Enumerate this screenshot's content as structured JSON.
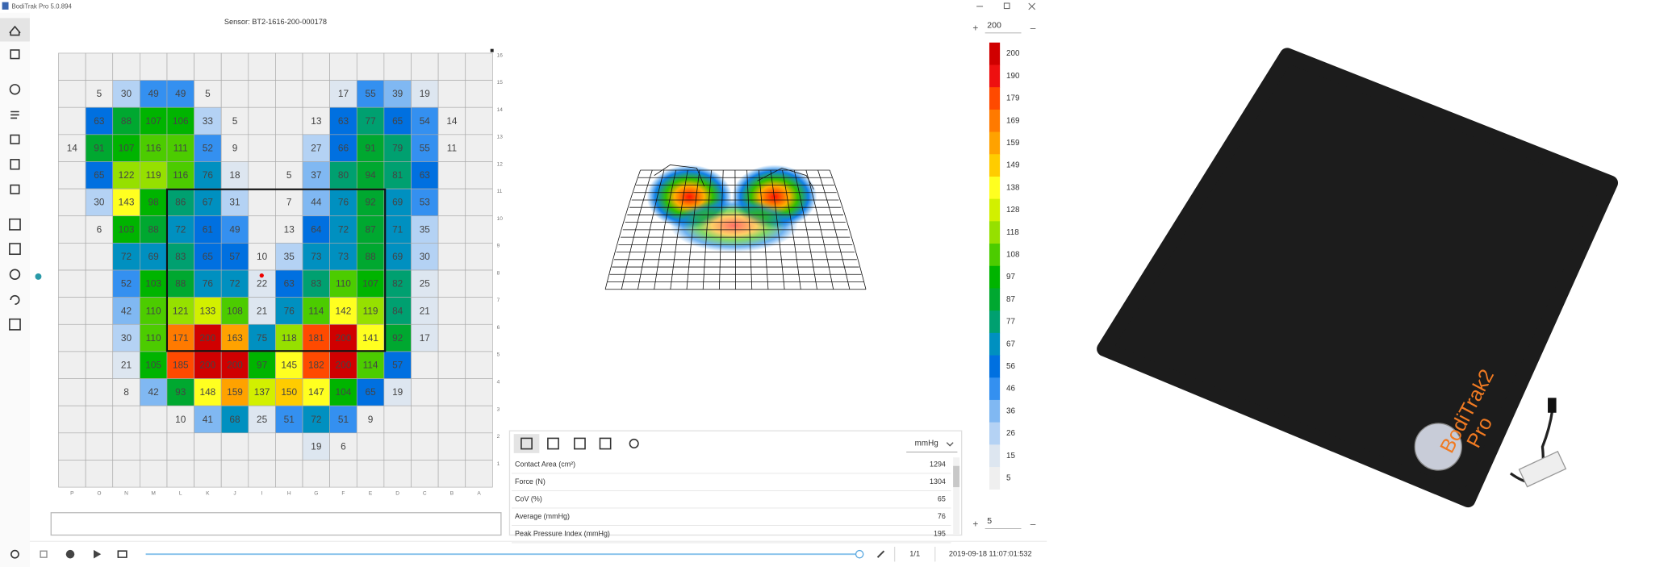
{
  "window": {
    "title": "BodiTrak Pro 5.0.894"
  },
  "sensor": "Sensor: BT2-1616-200-000178",
  "pressure_map": {
    "columns": [
      "P",
      "O",
      "N",
      "M",
      "L",
      "K",
      "J",
      "I",
      "H",
      "G",
      "F",
      "E",
      "D",
      "C",
      "B",
      "A"
    ],
    "rows": [
      16,
      15,
      14,
      13,
      12,
      11,
      10,
      9,
      8,
      7,
      6,
      5,
      4,
      3,
      2,
      1
    ],
    "cells": [
      [
        null,
        null,
        null,
        null,
        null,
        null,
        null,
        null,
        null,
        null,
        null,
        null,
        null,
        null,
        null,
        null
      ],
      [
        null,
        5,
        30,
        49,
        49,
        5,
        null,
        null,
        null,
        null,
        17,
        55,
        39,
        19,
        null,
        null
      ],
      [
        null,
        63,
        88,
        107,
        106,
        33,
        5,
        null,
        null,
        13,
        63,
        77,
        65,
        54,
        14,
        null
      ],
      [
        14,
        91,
        107,
        116,
        111,
        52,
        9,
        null,
        null,
        27,
        66,
        91,
        79,
        55,
        11,
        null
      ],
      [
        null,
        65,
        122,
        119,
        116,
        76,
        18,
        null,
        5,
        37,
        80,
        94,
        81,
        63,
        null,
        null
      ],
      [
        null,
        30,
        143,
        98,
        86,
        67,
        31,
        null,
        7,
        44,
        76,
        92,
        69,
        53,
        null,
        null
      ],
      [
        null,
        6,
        103,
        88,
        72,
        61,
        49,
        null,
        13,
        64,
        72,
        87,
        71,
        35,
        null,
        null
      ],
      [
        null,
        null,
        72,
        69,
        83,
        65,
        57,
        10,
        35,
        73,
        73,
        88,
        69,
        30,
        null,
        null
      ],
      [
        null,
        null,
        52,
        103,
        88,
        76,
        72,
        22,
        63,
        83,
        110,
        107,
        82,
        25,
        null,
        null
      ],
      [
        null,
        null,
        42,
        110,
        121,
        133,
        108,
        21,
        76,
        114,
        142,
        119,
        84,
        21,
        null,
        null
      ],
      [
        null,
        null,
        30,
        110,
        171,
        200,
        163,
        75,
        118,
        181,
        200,
        141,
        92,
        17,
        null,
        null
      ],
      [
        null,
        null,
        21,
        105,
        185,
        200,
        200,
        97,
        145,
        182,
        200,
        114,
        57,
        null,
        null,
        null
      ],
      [
        null,
        null,
        8,
        42,
        93,
        148,
        159,
        137,
        150,
        147,
        104,
        65,
        19,
        null,
        null,
        null
      ],
      [
        null,
        null,
        null,
        null,
        10,
        41,
        68,
        25,
        51,
        72,
        51,
        9,
        null,
        null,
        null,
        null
      ],
      [
        null,
        null,
        null,
        null,
        null,
        null,
        null,
        null,
        null,
        19,
        6,
        null,
        null,
        null,
        null,
        null
      ],
      [
        null,
        null,
        null,
        null,
        null,
        null,
        null,
        null,
        null,
        null,
        null,
        null,
        null,
        null,
        null,
        null
      ]
    ]
  },
  "color_scale": {
    "max": 200,
    "min": 5,
    "labels": [
      200,
      190,
      179,
      169,
      159,
      149,
      138,
      128,
      118,
      108,
      97,
      87,
      77,
      67,
      56,
      46,
      36,
      26,
      15,
      5
    ],
    "colors": [
      "#d00000",
      "#ee1010",
      "#ff4a00",
      "#ff7a00",
      "#ffa200",
      "#ffcc00",
      "#ffff20",
      "#d2f000",
      "#96e000",
      "#4ccc00",
      "#00b400",
      "#00a830",
      "#00a070",
      "#0090c0",
      "#0070e0",
      "#3490f0",
      "#80b8f2",
      "#b4d2f4",
      "#dde6f0",
      "#efefef"
    ]
  },
  "stats": {
    "unit": "mmHg",
    "rows": [
      [
        "Contact Area (cm²)",
        1294
      ],
      [
        "Force (N)",
        1304
      ],
      [
        "CoV (%)",
        65
      ],
      [
        "Average (mmHg)",
        76
      ],
      [
        "Peak Pressure Index (mmHg)",
        195
      ]
    ]
  },
  "playback": {
    "frame": "1/1",
    "timestamp": "2019-09-18 11:07:01:532"
  },
  "product": {
    "brand": "BodiTrak2",
    "edition": "Pro"
  }
}
